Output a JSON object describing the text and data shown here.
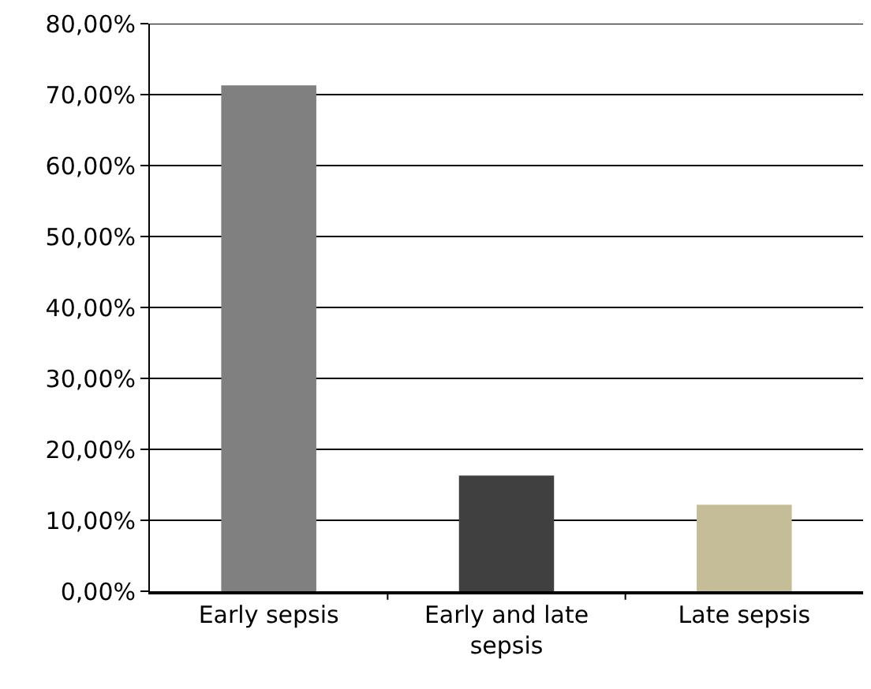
{
  "chart_data": {
    "type": "bar",
    "categories": [
      "Early sepsis",
      "Early and late sepsis",
      "Late sepsis"
    ],
    "values": [
      71.3,
      16.3,
      12.2
    ],
    "colors": [
      "#808080",
      "#404040",
      "#c4bd97"
    ],
    "ylim": [
      0,
      80
    ],
    "yticks": [
      {
        "value": 0,
        "label": "0,00%"
      },
      {
        "value": 10,
        "label": "10,00%"
      },
      {
        "value": 20,
        "label": "20,00%"
      },
      {
        "value": 30,
        "label": "30,00%"
      },
      {
        "value": 40,
        "label": "40,00%"
      },
      {
        "value": 50,
        "label": "50,00%"
      },
      {
        "value": 60,
        "label": "60,00%"
      },
      {
        "value": 70,
        "label": "70,00%"
      },
      {
        "value": 80,
        "label": "80,00%"
      }
    ],
    "grid": "y"
  }
}
